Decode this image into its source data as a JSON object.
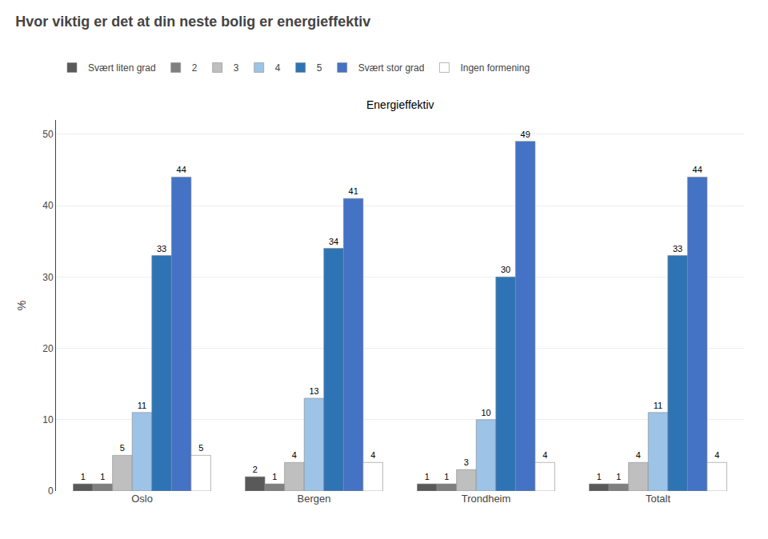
{
  "chart_data": {
    "type": "bar",
    "title": "Hvor viktig er det at din neste bolig er energieffektiv",
    "subtitle": "Energieffektiv",
    "ylabel": "%",
    "categories": [
      "Oslo",
      "Bergen",
      "Trondheim",
      "Totalt"
    ],
    "series": [
      {
        "name": "Svært liten grad",
        "color": "#595959",
        "values": [
          1,
          2,
          1,
          1
        ]
      },
      {
        "name": "2",
        "color": "#7f7f7f",
        "values": [
          1,
          1,
          1,
          1
        ]
      },
      {
        "name": "3",
        "color": "#bfbfbf",
        "values": [
          5,
          4,
          3,
          4
        ]
      },
      {
        "name": "4",
        "color": "#9dc3e6",
        "values": [
          11,
          13,
          10,
          11
        ]
      },
      {
        "name": "5",
        "color": "#2e74b5",
        "values": [
          33,
          34,
          30,
          33
        ]
      },
      {
        "name": "Svært stor grad",
        "color": "#4472c4",
        "values": [
          44,
          41,
          49,
          44
        ]
      },
      {
        "name": "Ingen formening",
        "color": "#ffffff",
        "values": [
          5,
          4,
          4,
          4
        ]
      }
    ],
    "ylim": [
      0,
      52
    ],
    "yticks": [
      0,
      10,
      20,
      30,
      40,
      50
    ],
    "grid": true,
    "legend": "top",
    "data_labels": true
  }
}
